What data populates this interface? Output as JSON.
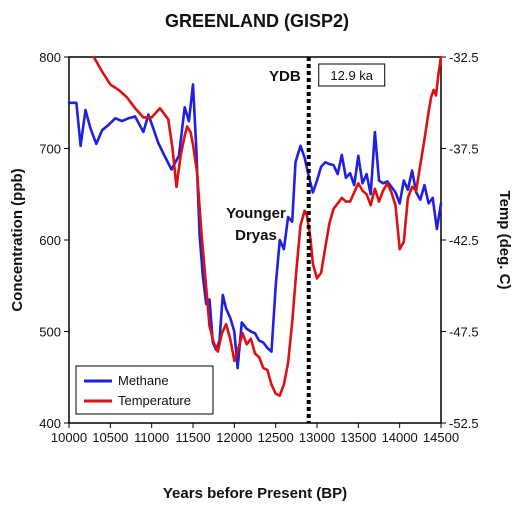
{
  "chart_data": {
    "type": "line",
    "title": "GREENLAND (GISP2)",
    "xlabel": "Years before Present (BP)",
    "ylabel": "Concentration (ppb)",
    "y2label": "Temp (deg. C)",
    "xlim": [
      10000,
      14500
    ],
    "ylim": [
      400,
      800
    ],
    "y2lim": [
      -52.5,
      -32.5
    ],
    "x_ticks": [
      "10000",
      "10500",
      "11000",
      "11500",
      "12000",
      "12500",
      "13000",
      "13500",
      "14000",
      "14500"
    ],
    "y_ticks": [
      "400",
      "500",
      "600",
      "700",
      "800"
    ],
    "y2_ticks": [
      "-52.5",
      "-47.5",
      "-42.5",
      "-37.5",
      "-32.5"
    ],
    "grid": false,
    "legend_position": "bottom-left",
    "colors": {
      "methane": "#2020e0",
      "temperature": "#dd1111",
      "ydb_line": "#000000"
    },
    "annotations": {
      "ydb": "YDB",
      "ydb_box": "12.9 ka",
      "ydb_x": 12900,
      "younger_dryas": [
        "Younger",
        "Dryas"
      ]
    },
    "series": [
      {
        "name": "Methane",
        "axis": "left",
        "color": "#2020e0",
        "points": [
          [
            10000,
            750
          ],
          [
            10090,
            750
          ],
          [
            10140,
            703
          ],
          [
            10200,
            742
          ],
          [
            10260,
            722
          ],
          [
            10330,
            705
          ],
          [
            10400,
            720
          ],
          [
            10480,
            726
          ],
          [
            10560,
            733
          ],
          [
            10640,
            730
          ],
          [
            10720,
            733
          ],
          [
            10800,
            735
          ],
          [
            10900,
            718
          ],
          [
            10960,
            737
          ],
          [
            11020,
            722
          ],
          [
            11080,
            706
          ],
          [
            11150,
            693
          ],
          [
            11240,
            677
          ],
          [
            11330,
            692
          ],
          [
            11400,
            745
          ],
          [
            11450,
            730
          ],
          [
            11500,
            770
          ],
          [
            11540,
            700
          ],
          [
            11580,
            605
          ],
          [
            11620,
            560
          ],
          [
            11660,
            530
          ],
          [
            11700,
            535
          ],
          [
            11740,
            488
          ],
          [
            11780,
            480
          ],
          [
            11820,
            490
          ],
          [
            11860,
            540
          ],
          [
            11900,
            525
          ],
          [
            11950,
            515
          ],
          [
            12000,
            500
          ],
          [
            12040,
            460
          ],
          [
            12090,
            510
          ],
          [
            12150,
            503
          ],
          [
            12200,
            500
          ],
          [
            12250,
            498
          ],
          [
            12300,
            490
          ],
          [
            12350,
            488
          ],
          [
            12400,
            482
          ],
          [
            12450,
            478
          ],
          [
            12500,
            550
          ],
          [
            12550,
            600
          ],
          [
            12600,
            590
          ],
          [
            12650,
            625
          ],
          [
            12700,
            620
          ],
          [
            12740,
            685
          ],
          [
            12800,
            703
          ],
          [
            12850,
            690
          ],
          [
            12900,
            670
          ],
          [
            12950,
            652
          ],
          [
            13000,
            665
          ],
          [
            13050,
            680
          ],
          [
            13100,
            685
          ],
          [
            13150,
            683
          ],
          [
            13200,
            682
          ],
          [
            13250,
            672
          ],
          [
            13300,
            693
          ],
          [
            13350,
            668
          ],
          [
            13400,
            673
          ],
          [
            13450,
            660
          ],
          [
            13500,
            692
          ],
          [
            13550,
            662
          ],
          [
            13600,
            672
          ],
          [
            13650,
            650
          ],
          [
            13700,
            718
          ],
          [
            13750,
            665
          ],
          [
            13800,
            662
          ],
          [
            13850,
            664
          ],
          [
            13900,
            658
          ],
          [
            13950,
            652
          ],
          [
            14000,
            640
          ],
          [
            14050,
            665
          ],
          [
            14100,
            655
          ],
          [
            14150,
            676
          ],
          [
            14200,
            652
          ],
          [
            14250,
            644
          ],
          [
            14300,
            660
          ],
          [
            14350,
            640
          ],
          [
            14400,
            646
          ],
          [
            14450,
            612
          ],
          [
            14500,
            640
          ]
        ]
      },
      {
        "name": "Temperature",
        "axis": "right",
        "color": "#dd1111",
        "points": [
          [
            10300,
            -32.5
          ],
          [
            10400,
            -33.3
          ],
          [
            10500,
            -34.0
          ],
          [
            10600,
            -34.3
          ],
          [
            10700,
            -34.7
          ],
          [
            10800,
            -35.3
          ],
          [
            10900,
            -35.8
          ],
          [
            11000,
            -35.8
          ],
          [
            11100,
            -35.3
          ],
          [
            11200,
            -35.9
          ],
          [
            11250,
            -37.4
          ],
          [
            11300,
            -39.6
          ],
          [
            11350,
            -37.9
          ],
          [
            11400,
            -36.8
          ],
          [
            11430,
            -36.3
          ],
          [
            11470,
            -36.6
          ],
          [
            11500,
            -37.3
          ],
          [
            11550,
            -38.8
          ],
          [
            11600,
            -42.0
          ],
          [
            11650,
            -44.6
          ],
          [
            11700,
            -47.2
          ],
          [
            11750,
            -48.1
          ],
          [
            11800,
            -48.6
          ],
          [
            11850,
            -47.6
          ],
          [
            11900,
            -47.1
          ],
          [
            11950,
            -47.9
          ],
          [
            12000,
            -49.1
          ],
          [
            12050,
            -48.4
          ],
          [
            12100,
            -47.6
          ],
          [
            12150,
            -48.2
          ],
          [
            12200,
            -47.9
          ],
          [
            12250,
            -48.7
          ],
          [
            12300,
            -48.9
          ],
          [
            12350,
            -49.5
          ],
          [
            12400,
            -49.6
          ],
          [
            12450,
            -50.4
          ],
          [
            12500,
            -50.9
          ],
          [
            12550,
            -51.0
          ],
          [
            12600,
            -50.4
          ],
          [
            12650,
            -49.2
          ],
          [
            12700,
            -47.0
          ],
          [
            12750,
            -44.2
          ],
          [
            12800,
            -41.7
          ],
          [
            12850,
            -40.9
          ],
          [
            12880,
            -41.2
          ],
          [
            12920,
            -42.4
          ],
          [
            12950,
            -43.8
          ],
          [
            13000,
            -44.6
          ],
          [
            13050,
            -44.3
          ],
          [
            13100,
            -42.9
          ],
          [
            13150,
            -41.6
          ],
          [
            13200,
            -40.8
          ],
          [
            13250,
            -40.5
          ],
          [
            13300,
            -40.2
          ],
          [
            13350,
            -40.4
          ],
          [
            13400,
            -40.4
          ],
          [
            13450,
            -39.9
          ],
          [
            13500,
            -39.4
          ],
          [
            13550,
            -39.8
          ],
          [
            13600,
            -40.0
          ],
          [
            13650,
            -40.6
          ],
          [
            13700,
            -39.7
          ],
          [
            13750,
            -40.4
          ],
          [
            13800,
            -39.8
          ],
          [
            13850,
            -39.4
          ],
          [
            13900,
            -39.9
          ],
          [
            13950,
            -40.6
          ],
          [
            14000,
            -43.0
          ],
          [
            14050,
            -42.6
          ],
          [
            14100,
            -40.2
          ],
          [
            14150,
            -39.6
          ],
          [
            14200,
            -39.8
          ],
          [
            14250,
            -38.4
          ],
          [
            14300,
            -37.0
          ],
          [
            14350,
            -35.5
          ],
          [
            14380,
            -34.7
          ],
          [
            14410,
            -34.3
          ],
          [
            14440,
            -34.6
          ],
          [
            14470,
            -33.4
          ],
          [
            14500,
            -32.5
          ]
        ]
      }
    ]
  }
}
